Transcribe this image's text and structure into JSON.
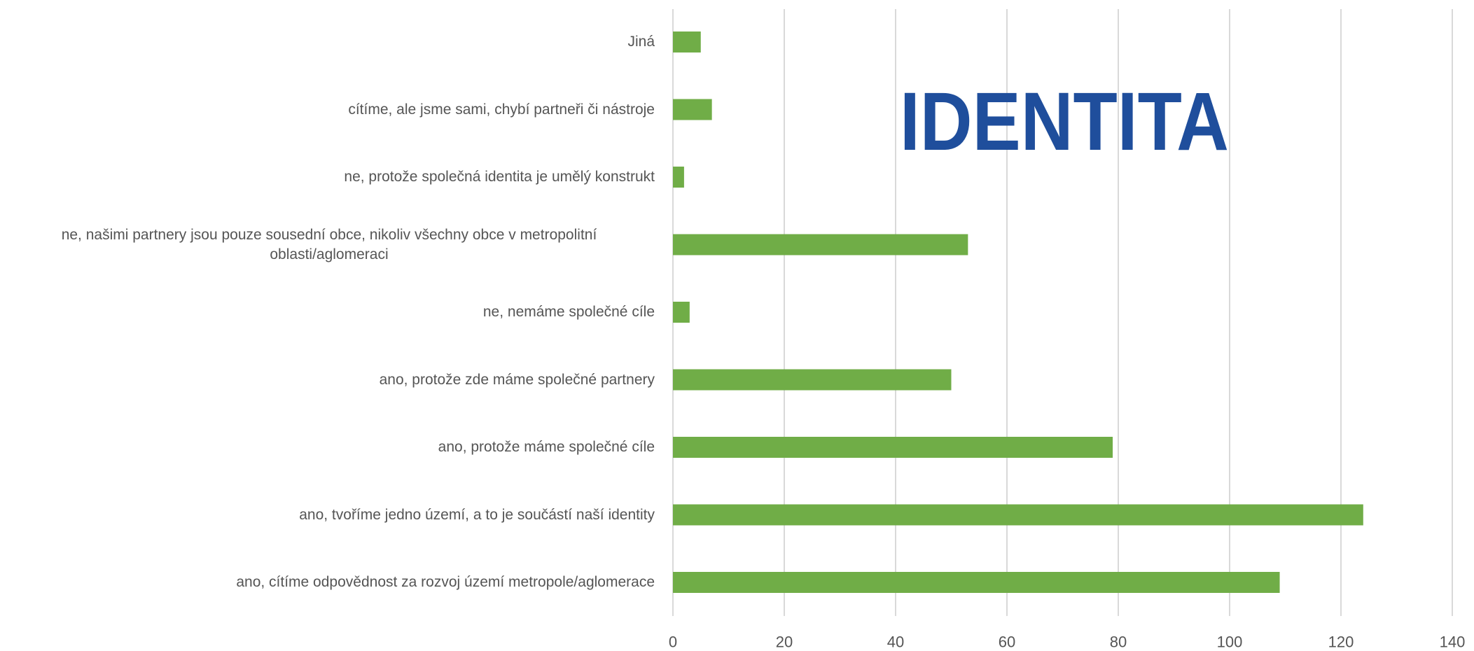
{
  "chart_data": {
    "type": "bar",
    "orientation": "horizontal",
    "title": "IDENTITA",
    "categories": [
      "Jiná",
      "cítíme, ale jsme sami, chybí partneři či nástroje",
      "ne, protože společná identita je umělý konstrukt",
      "ne, našimi partnery jsou pouze sousední obce, nikoliv všechny obce v metropolitní oblasti/aglomeraci",
      "ne, nemáme společné cíle",
      "ano, protože zde máme společné partnery",
      "ano, protože máme společné cíle",
      "ano, tvoříme jedno území, a to je součástí naší identity",
      "ano, cítíme odpovědnost za rozvoj území metropole/aglomerace"
    ],
    "values": [
      5,
      7,
      2,
      53,
      3,
      50,
      79,
      124,
      109
    ],
    "color": "#70ad47",
    "xlim": [
      0,
      140
    ],
    "xticks": [
      0,
      20,
      40,
      60,
      80,
      100,
      120,
      140
    ],
    "grid": true
  }
}
